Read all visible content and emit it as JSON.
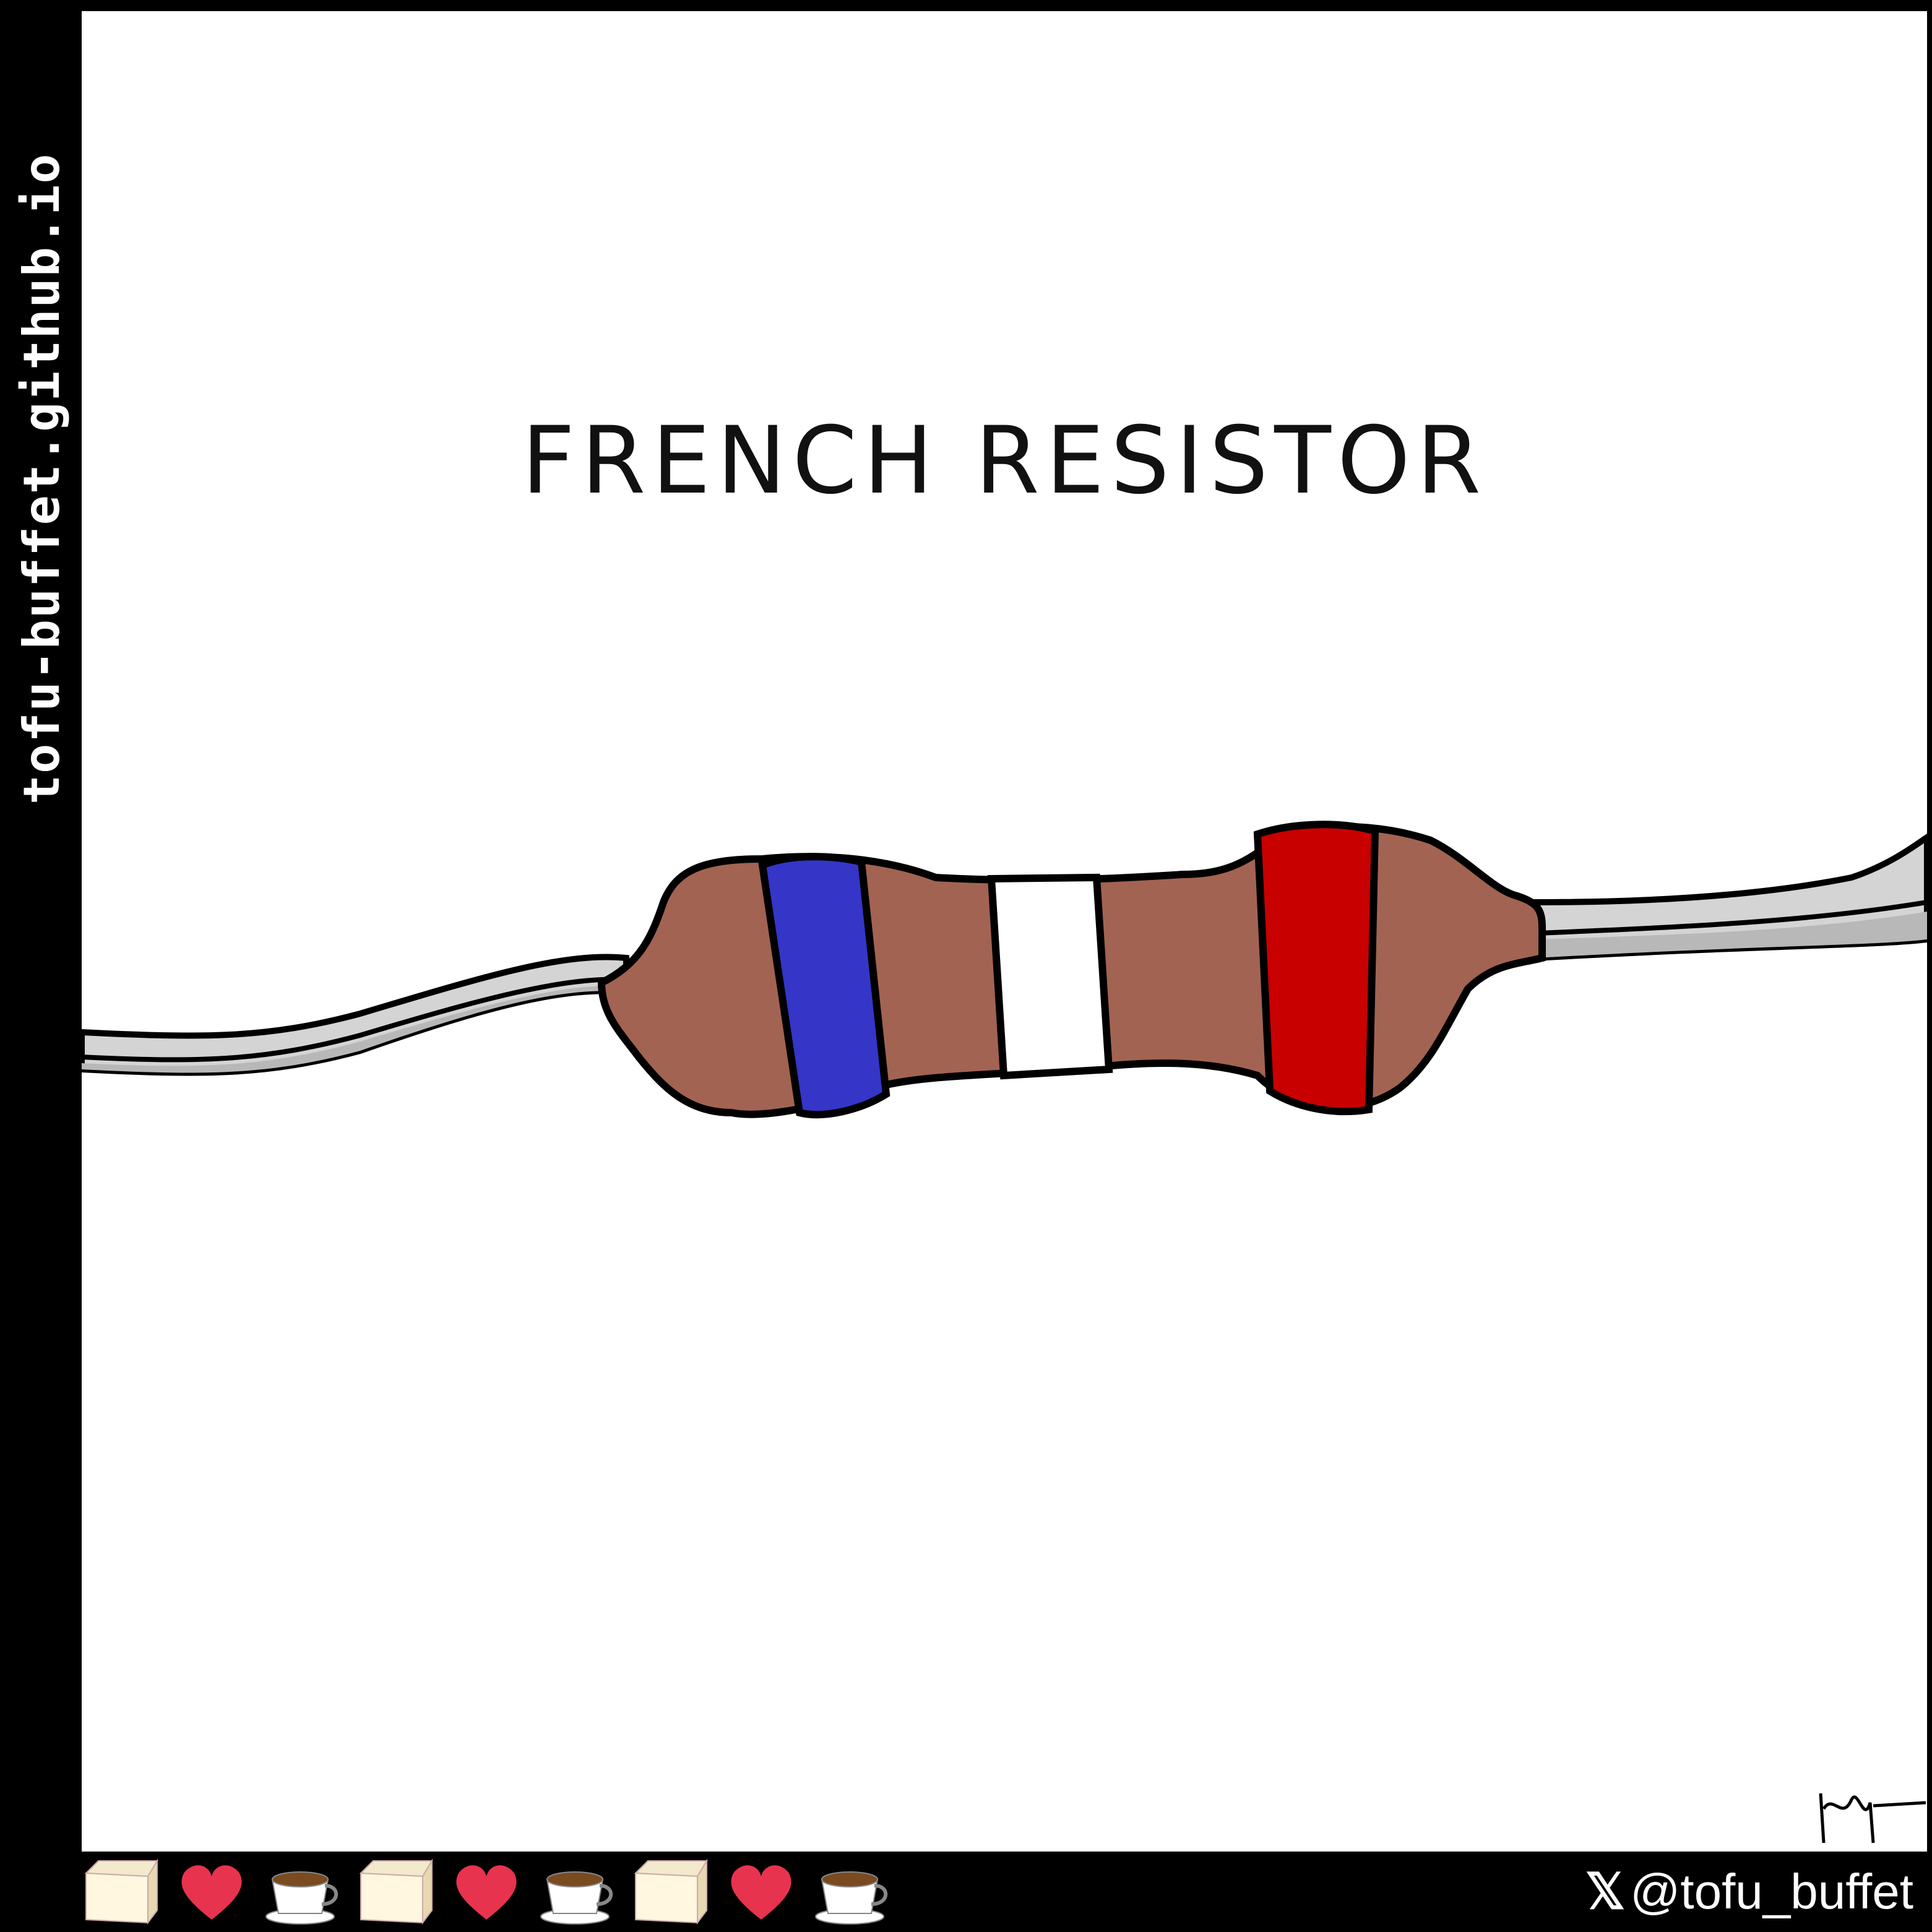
{
  "side_url": "tofu-buffet.github.io",
  "title": "FRENCH RESISTOR",
  "handle": "@tofu_buffet",
  "icons": {
    "x_logo": "x-logo-icon",
    "footer_sequence": [
      "tofu-icon",
      "heart-icon",
      "coffee-icon",
      "tofu-icon",
      "heart-icon",
      "coffee-icon",
      "tofu-icon",
      "heart-icon",
      "coffee-icon"
    ]
  },
  "colors": {
    "resistor_body": "#A36352",
    "band_blue": "#3535C8",
    "band_white": "#FFFFFF",
    "band_red": "#C80000",
    "lead": "#D4D4D4",
    "lead_shadow": "#B8B8B8",
    "outline": "#000000",
    "frame": "#000000"
  }
}
